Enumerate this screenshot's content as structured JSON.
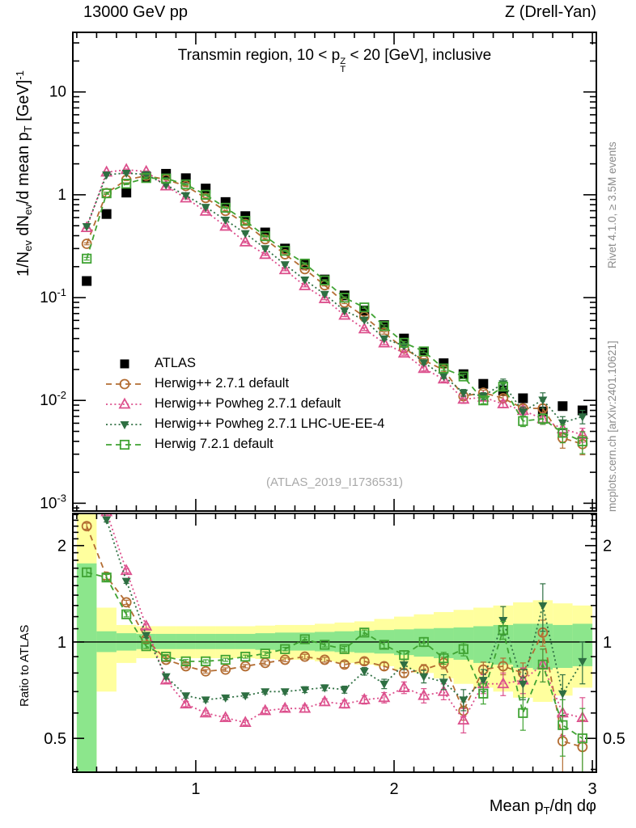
{
  "header": {
    "left": "13000 GeV pp",
    "right": "Z (Drell-Yan)"
  },
  "panel_title_rich": [
    {
      "t": "Transmin region, 10 < p"
    },
    {
      "stack": {
        "sup": "Z",
        "sub": "T"
      }
    },
    {
      "t": " < 20 [GeV], inclusive"
    }
  ],
  "y_axis_label_rich": [
    {
      "t": "1/N"
    },
    {
      "sub": "ev"
    },
    {
      "t": " dN"
    },
    {
      "sub": "ev"
    },
    {
      "t": "/d mean p"
    },
    {
      "sub": "T"
    },
    {
      "t": " [GeV]"
    },
    {
      "sup": "-1"
    }
  ],
  "x_axis_label_rich": [
    {
      "t": "Mean p"
    },
    {
      "sub": "T"
    },
    {
      "t": "/dη dφ"
    }
  ],
  "ratio_axis_label": "Ratio to ATLAS",
  "side_text_top": "Rivet 4.1.0, ≥ 3.5M events",
  "side_text_bottom": "mcplots.cern.ch [arXiv:2401.10621]",
  "watermark": "(ATLAS_2019_I1736531)",
  "colors": {
    "atlas": "#000000",
    "herwigpp_default": "#b36d33",
    "herwigpp_powheg_default": "#dc4f8c",
    "herwigpp_powheg_ee4": "#2e6f42",
    "herwig721_default": "#40a333",
    "band_yellow": "#ffff9e",
    "band_green": "#8ce68c",
    "side_text": "#8c8c8c",
    "watermark": "#a9a9a9"
  },
  "chart_data": {
    "type": "line",
    "title": "Transmin region, 10 < pT^Z < 20 [GeV], inclusive",
    "xlabel": "Mean pT/dη dφ",
    "ylabel": "1/N_ev dN_ev/d mean p_T [GeV]^-1",
    "ratio_ylabel": "Ratio to ATLAS",
    "x": [
      0.45,
      0.55,
      0.65,
      0.75,
      0.85,
      0.95,
      1.05,
      1.15,
      1.25,
      1.35,
      1.45,
      1.55,
      1.65,
      1.75,
      1.85,
      1.95,
      2.05,
      2.15,
      2.25,
      2.35,
      2.45,
      2.55,
      2.65,
      2.75,
      2.85,
      2.95
    ],
    "xlim": [
      0.38,
      3.02
    ],
    "main_ylim": [
      0.00084,
      38
    ],
    "ratio_ylim": [
      0.392,
      2.52
    ],
    "main_y_ticks": [
      {
        "v": 10,
        "base": "10",
        "exp": ""
      },
      {
        "v": 1,
        "base": "1",
        "exp": ""
      },
      {
        "v": 0.1,
        "base": "10",
        "exp": "-1"
      },
      {
        "v": 0.01,
        "base": "10",
        "exp": "-2"
      },
      {
        "v": 0.001,
        "base": "10",
        "exp": "-3"
      }
    ],
    "ratio_y_ticks": [
      {
        "v": 2,
        "label": "2"
      },
      {
        "v": 1,
        "label": "1"
      },
      {
        "v": 0.5,
        "label": "0.5"
      }
    ],
    "x_ticks": [
      {
        "v": 1,
        "label": "1"
      },
      {
        "v": 2,
        "label": "2"
      },
      {
        "v": 3,
        "label": "3"
      }
    ],
    "atlas": {
      "name": "ATLAS",
      "marker": "filled-square",
      "color": "#000000",
      "values": [
        0.145,
        0.65,
        1.05,
        1.5,
        1.6,
        1.45,
        1.15,
        0.85,
        0.62,
        0.43,
        0.3,
        0.21,
        0.15,
        0.105,
        0.075,
        0.054,
        0.04,
        0.03,
        0.023,
        0.018,
        0.0145,
        0.0125,
        0.0105,
        0.0078,
        0.0088,
        0.008
      ]
    },
    "series": [
      {
        "name": "Herwig++ 2.7.1 default",
        "slug": "herwigpp-2-7-1-default",
        "color": "#b36d33",
        "marker": "open-circle",
        "linestyle": "dashed",
        "ratio_to_atlas": [
          2.3,
          1.6,
          1.33,
          1.02,
          0.88,
          0.84,
          0.81,
          0.82,
          0.84,
          0.86,
          0.88,
          0.9,
          0.88,
          0.85,
          0.87,
          0.84,
          0.8,
          0.82,
          0.86,
          0.61,
          0.82,
          0.84,
          0.8,
          1.07,
          0.49,
          0.47
        ],
        "ratio_err": [
          0.05,
          0.03,
          0.02,
          0.015,
          0.012,
          0.01,
          0.01,
          0.01,
          0.01,
          0.012,
          0.012,
          0.015,
          0.015,
          0.018,
          0.02,
          0.022,
          0.025,
          0.03,
          0.035,
          0.04,
          0.045,
          0.05,
          0.06,
          0.1,
          0.1,
          0.1
        ]
      },
      {
        "name": "Herwig++ Powheg 2.7.1 default",
        "slug": "herwigpp-powheg-2-7-1-default",
        "color": "#dc4f8c",
        "marker": "open-triangle-up",
        "linestyle": "dotted",
        "ratio_to_atlas": [
          3.3,
          2.55,
          1.67,
          1.12,
          0.76,
          0.64,
          0.6,
          0.58,
          0.56,
          0.61,
          0.62,
          0.62,
          0.65,
          0.64,
          0.66,
          0.67,
          0.72,
          0.68,
          0.7,
          0.57,
          0.74,
          0.74,
          0.76,
          0.85,
          0.6,
          0.58
        ],
        "ratio_err": [
          0.06,
          0.04,
          0.025,
          0.018,
          0.014,
          0.012,
          0.01,
          0.01,
          0.01,
          0.012,
          0.012,
          0.015,
          0.015,
          0.018,
          0.02,
          0.025,
          0.03,
          0.035,
          0.04,
          0.05,
          0.05,
          0.06,
          0.07,
          0.1,
          0.09,
          0.09
        ]
      },
      {
        "name": "Herwig++ Powheg 2.7.1 LHC-UE-EE-4",
        "slug": "herwigpp-powheg-2-7-1-lhc-ue-ee-4",
        "color": "#2e6f42",
        "marker": "filled-triangle-down",
        "linestyle": "dotted",
        "ratio_to_atlas": [
          3.4,
          2.41,
          1.55,
          1.05,
          0.78,
          0.68,
          0.66,
          0.67,
          0.68,
          0.7,
          0.7,
          0.71,
          0.72,
          0.71,
          0.81,
          0.74,
          0.85,
          0.78,
          0.75,
          0.66,
          0.76,
          1.17,
          0.74,
          1.3,
          0.69,
          0.87
        ],
        "ratio_err": [
          0.06,
          0.04,
          0.025,
          0.018,
          0.014,
          0.012,
          0.01,
          0.01,
          0.01,
          0.012,
          0.012,
          0.015,
          0.015,
          0.018,
          0.022,
          0.025,
          0.03,
          0.035,
          0.04,
          0.05,
          0.06,
          0.12,
          0.08,
          0.22,
          0.1,
          0.13
        ]
      },
      {
        "name": "Herwig 7.2.1 default",
        "slug": "herwig-7-2-1-default",
        "color": "#40a333",
        "marker": "open-square",
        "linestyle": "dashed",
        "ratio_to_atlas": [
          1.65,
          1.59,
          1.22,
          0.97,
          0.9,
          0.87,
          0.87,
          0.88,
          0.9,
          0.92,
          0.95,
          1.02,
          0.98,
          0.95,
          1.07,
          0.98,
          0.91,
          1.0,
          0.89,
          0.95,
          0.69,
          1.09,
          0.6,
          0.85,
          0.55,
          0.5
        ],
        "ratio_err": [
          0.05,
          0.035,
          0.022,
          0.016,
          0.013,
          0.011,
          0.01,
          0.01,
          0.01,
          0.012,
          0.012,
          0.015,
          0.015,
          0.018,
          0.02,
          0.024,
          0.028,
          0.032,
          0.038,
          0.045,
          0.05,
          0.07,
          0.07,
          0.1,
          0.11,
          0.12
        ]
      }
    ],
    "ratio_bands": {
      "bin_half_width": 0.05,
      "yellow_lo": [
        0.392,
        0.7,
        0.86,
        0.89,
        0.89,
        0.89,
        0.89,
        0.89,
        0.89,
        0.885,
        0.88,
        0.88,
        0.87,
        0.86,
        0.85,
        0.84,
        0.82,
        0.8,
        0.77,
        0.74,
        0.72,
        0.7,
        0.67,
        0.65,
        0.68,
        0.72
      ],
      "yellow_hi": [
        2.52,
        1.28,
        1.13,
        1.12,
        1.12,
        1.12,
        1.12,
        1.12,
        1.12,
        1.125,
        1.13,
        1.13,
        1.14,
        1.15,
        1.16,
        1.18,
        1.2,
        1.22,
        1.24,
        1.26,
        1.28,
        1.3,
        1.33,
        1.35,
        1.32,
        1.3
      ],
      "green_lo": [
        0.392,
        0.93,
        0.94,
        0.95,
        0.95,
        0.95,
        0.95,
        0.95,
        0.95,
        0.945,
        0.94,
        0.94,
        0.935,
        0.93,
        0.925,
        0.92,
        0.91,
        0.9,
        0.89,
        0.88,
        0.86,
        0.85,
        0.83,
        0.82,
        0.83,
        0.84
      ],
      "green_hi": [
        1.76,
        1.08,
        1.065,
        1.06,
        1.06,
        1.06,
        1.06,
        1.06,
        1.06,
        1.065,
        1.07,
        1.07,
        1.075,
        1.08,
        1.085,
        1.09,
        1.095,
        1.1,
        1.105,
        1.11,
        1.12,
        1.13,
        1.14,
        1.14,
        1.13,
        1.14
      ]
    },
    "legend": [
      {
        "label": "ATLAS"
      },
      {
        "label": "Herwig++ 2.7.1 default"
      },
      {
        "label": "Herwig++ Powheg 2.7.1 default"
      },
      {
        "label": "Herwig++ Powheg 2.7.1 LHC-UE-EE-4"
      },
      {
        "label": "Herwig 7.2.1 default"
      }
    ]
  }
}
